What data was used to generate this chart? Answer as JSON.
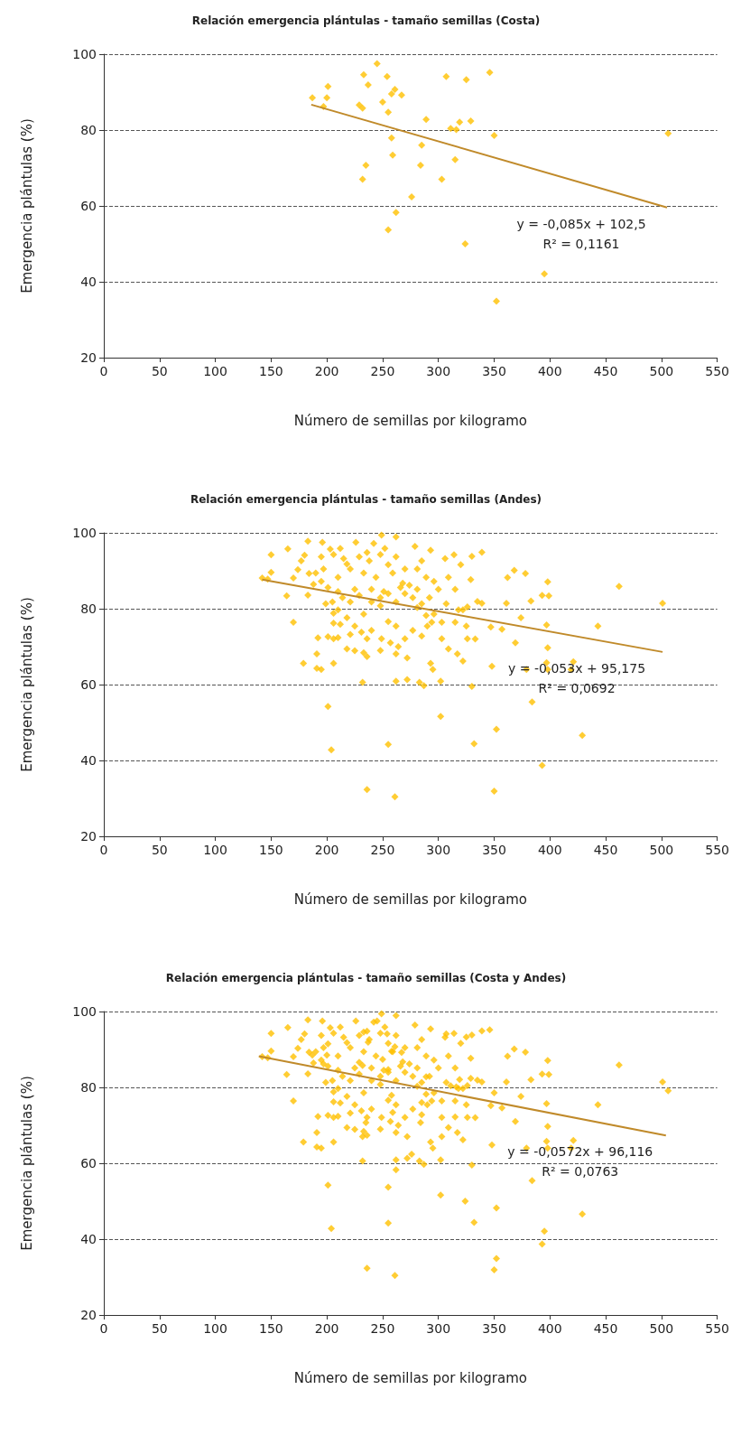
{
  "chart_data": [
    {
      "type": "scatter",
      "title": "Relación emergencia plántulas - tamaño semillas (Costa)",
      "xlabel": "Número de semillas por kilogramo",
      "ylabel": "Emergencia plántulas (%)",
      "xlim": [
        0,
        550
      ],
      "ylim": [
        20,
        100
      ],
      "xticks": [
        0,
        50,
        100,
        150,
        200,
        250,
        300,
        350,
        400,
        450,
        500,
        550
      ],
      "yticks": [
        20,
        40,
        60,
        80,
        100
      ],
      "grid": "y",
      "marker": "diamond",
      "series": [
        {
          "type": "scatter",
          "color": "#ffc000",
          "x": [
            187,
            197,
            200,
            201,
            229,
            232,
            233,
            237,
            232,
            235,
            245,
            250,
            254,
            255,
            258,
            261,
            267,
            258,
            259,
            255,
            262,
            276,
            285,
            284,
            289,
            303,
            307,
            311,
            316,
            315,
            319,
            325,
            329,
            324,
            346,
            350,
            352,
            395,
            506
          ],
          "values": [
            88.5,
            86.2,
            88.5,
            91.5,
            86.6,
            85.8,
            94.6,
            91.9,
            67.0,
            70.7,
            97.5,
            87.4,
            94.1,
            84.7,
            89.5,
            90.7,
            89.2,
            77.9,
            73.4,
            53.7,
            58.3,
            62.4,
            76.0,
            70.7,
            82.8,
            67.0,
            94.1,
            80.4,
            80.1,
            72.2,
            82.1,
            93.3,
            82.4,
            50.0,
            95.2,
            78.6,
            34.9,
            42.1,
            79.1
          ]
        },
        {
          "type": "line",
          "color": "#c08a2a",
          "marker": "none",
          "x": [
            186,
            505
          ],
          "values": [
            86.7,
            59.6
          ]
        }
      ],
      "annotations": [
        "y = -0,085x + 102,5",
        "R² = 0,1161"
      ]
    },
    {
      "type": "scatter",
      "title": "Relación emergencia plántulas - tamaño semillas (Andes)",
      "xlabel": "Número de semillas por kilogramo",
      "ylabel": "Emergencia plántulas (%)",
      "xlim": [
        0,
        550
      ],
      "ylim": [
        20,
        100
      ],
      "xticks": [
        0,
        50,
        100,
        150,
        200,
        250,
        300,
        350,
        400,
        450,
        500,
        550
      ],
      "yticks": [
        20,
        40,
        60,
        80,
        100
      ],
      "grid": "y",
      "marker": "diamond",
      "series": [
        {
          "type": "scatter",
          "color": "#ffc000",
          "x": [
            142,
            147,
            150,
            150,
            164,
            165,
            170,
            170,
            174,
            177,
            179,
            180,
            183,
            183,
            184,
            188,
            191,
            192,
            191,
            195,
            196,
            201,
            204,
            206,
            206,
            210,
            232,
            236,
            255,
            261,
            262,
            272,
            283,
            287,
            302,
            302,
            293,
            295,
            317,
            322,
            330,
            332,
            348,
            350,
            352,
            361,
            362,
            368,
            374,
            378,
            383,
            384,
            393,
            393,
            398,
            399,
            397,
            398,
            398,
            397,
            379,
            419,
            421,
            429,
            443,
            462,
            501,
            339,
            330,
            329,
            314,
            347,
            357,
            335,
            339,
            325,
            326,
            333,
            369,
            195,
            197,
            203,
            206,
            212,
            215,
            218,
            221,
            226,
            229,
            233,
            236,
            238,
            242,
            244,
            248,
            249,
            252,
            255,
            259,
            262,
            262,
            268,
            270,
            274,
            279,
            281,
            285,
            289,
            293,
            296,
            300,
            306,
            309,
            315,
            320,
            322,
            205,
            210,
            218,
            225,
            233,
            240,
            248,
            255,
            262,
            270,
            277,
            281,
            289,
            294,
            303,
            309,
            218,
            225,
            233,
            236,
            248,
            262,
            272,
            201,
            206,
            214,
            221,
            229,
            240,
            248,
            255,
            262,
            270,
            277,
            285,
            292,
            210,
            199,
            225,
            240,
            251,
            266,
            281,
            195,
            201,
            296,
            303,
            315,
            318,
            326,
            307,
            290,
            285,
            206,
            212,
            221,
            231,
            236,
            249,
            257,
            264,
            190,
            210
          ],
          "values": [
            88.1,
            87.8,
            94.2,
            89.6,
            83.4,
            95.8,
            76.4,
            88.1,
            90.3,
            92.6,
            65.6,
            94.1,
            97.8,
            83.6,
            89.3,
            86.4,
            64.3,
            72.3,
            68.1,
            64.0,
            97.5,
            54.2,
            42.8,
            65.6,
            76.2,
            72.4,
            60.6,
            32.3,
            44.2,
            30.4,
            60.9,
            61.3,
            60.6,
            59.7,
            60.9,
            51.6,
            65.6,
            64.0,
            68.1,
            66.2,
            59.5,
            44.4,
            64.8,
            31.9,
            48.2,
            81.4,
            88.2,
            90.1,
            77.6,
            89.3,
            82.0,
            55.4,
            83.5,
            38.7,
            87.1,
            83.4,
            75.7,
            69.7,
            64.0,
            65.8,
            64.0,
            64.0,
            66.0,
            46.6,
            75.4,
            85.9,
            81.4,
            94.9,
            93.8,
            87.7,
            94.2,
            75.2,
            74.6,
            81.9,
            81.4,
            75.4,
            72.1,
            72.0,
            71.0,
            93.7,
            90.5,
            95.7,
            94.3,
            95.9,
            93.2,
            91.8,
            90.5,
            97.5,
            93.7,
            89.4,
            94.8,
            92.6,
            97.2,
            88.3,
            94.3,
            99.4,
            95.9,
            91.6,
            89.4,
            98.9,
            93.7,
            86.7,
            90.5,
            86.2,
            96.4,
            90.5,
            92.6,
            88.3,
            95.4,
            87.2,
            85.1,
            93.2,
            88.3,
            85.1,
            91.6,
            79.7,
            81.8,
            79.7,
            77.6,
            75.4,
            78.6,
            74.3,
            80.8,
            76.6,
            75.4,
            72.1,
            74.3,
            80.3,
            78.2,
            76.4,
            72.1,
            69.4,
            69.4,
            68.9,
            68.4,
            67.4,
            69.0,
            68.1,
            67.0,
            72.6,
            78.8,
            82.9,
            81.8,
            83.5,
            81.8,
            82.9,
            84.0,
            81.8,
            84.0,
            82.9,
            81.3,
            82.9,
            84.5,
            81.3,
            85.1,
            85.1,
            84.5,
            85.6,
            85.1,
            87.2,
            85.6,
            78.6,
            76.4,
            76.4,
            79.7,
            80.5,
            81.3,
            75.4,
            72.8,
            72.1,
            75.9,
            73.2,
            73.8,
            72.1,
            72.1,
            71.0,
            70.0,
            89.4,
            88.3
          ]
        },
        {
          "type": "line",
          "color": "#c08a2a",
          "marker": "none",
          "x": [
            142,
            501
          ],
          "values": [
            87.7,
            68.6
          ]
        }
      ],
      "annotations": [
        "y = -0,053x + 95,175",
        "R² = 0,0692"
      ]
    },
    {
      "type": "scatter",
      "title": "Relación emergencia plántulas - tamaño semillas (Costa y Andes)",
      "xlabel": "Número de semillas por kilogramo",
      "ylabel": "Emergencia plántulas (%)",
      "xlim": [
        0,
        550
      ],
      "ylim": [
        20,
        100
      ],
      "xticks": [
        0,
        50,
        100,
        150,
        200,
        250,
        300,
        350,
        400,
        450,
        500,
        550
      ],
      "yticks": [
        20,
        40,
        60,
        80,
        100
      ],
      "grid": "y",
      "marker": "diamond",
      "series": [
        {
          "type": "scatter",
          "color": "#ffc000",
          "x": [
            187,
            197,
            200,
            201,
            229,
            232,
            233,
            237,
            232,
            235,
            245,
            250,
            254,
            255,
            258,
            261,
            267,
            258,
            259,
            255,
            262,
            276,
            285,
            284,
            289,
            303,
            307,
            311,
            316,
            315,
            319,
            325,
            329,
            324,
            346,
            350,
            352,
            395,
            506,
            142,
            147,
            150,
            150,
            164,
            165,
            170,
            170,
            174,
            177,
            179,
            180,
            183,
            183,
            184,
            188,
            191,
            192,
            191,
            195,
            196,
            201,
            204,
            206,
            206,
            210,
            232,
            236,
            255,
            261,
            262,
            272,
            283,
            287,
            302,
            302,
            293,
            295,
            317,
            322,
            330,
            332,
            348,
            350,
            352,
            361,
            362,
            368,
            374,
            378,
            383,
            384,
            393,
            393,
            398,
            399,
            397,
            398,
            398,
            397,
            379,
            419,
            421,
            429,
            443,
            462,
            501,
            339,
            330,
            329,
            314,
            347,
            357,
            335,
            339,
            325,
            326,
            333,
            369,
            195,
            197,
            203,
            206,
            212,
            215,
            218,
            221,
            226,
            229,
            233,
            236,
            238,
            242,
            244,
            248,
            249,
            252,
            255,
            259,
            262,
            262,
            268,
            270,
            274,
            279,
            281,
            285,
            289,
            293,
            296,
            300,
            306,
            309,
            315,
            320,
            322,
            205,
            210,
            218,
            225,
            233,
            240,
            248,
            255,
            262,
            270,
            277,
            281,
            289,
            294,
            303,
            309,
            218,
            225,
            233,
            236,
            248,
            262,
            272,
            201,
            206,
            214,
            221,
            229,
            240,
            248,
            255,
            262,
            270,
            277,
            285,
            292,
            210,
            199,
            225,
            240,
            251,
            266,
            281,
            195,
            201,
            296,
            303,
            315,
            318,
            326,
            307,
            290,
            285,
            206,
            212,
            221,
            231,
            236,
            249,
            257,
            264,
            190,
            210
          ],
          "values": [
            88.5,
            86.2,
            88.5,
            91.5,
            86.6,
            85.8,
            94.6,
            91.9,
            67.0,
            70.7,
            97.5,
            87.4,
            94.1,
            84.7,
            89.5,
            90.7,
            89.2,
            77.9,
            73.4,
            53.7,
            58.3,
            62.4,
            76.0,
            70.7,
            82.8,
            67.0,
            94.1,
            80.4,
            80.1,
            72.2,
            82.1,
            93.3,
            82.4,
            50.0,
            95.2,
            78.6,
            34.9,
            42.1,
            79.1,
            88.1,
            87.8,
            94.2,
            89.6,
            83.4,
            95.8,
            76.4,
            88.1,
            90.3,
            92.6,
            65.6,
            94.1,
            97.8,
            83.6,
            89.3,
            86.4,
            64.3,
            72.3,
            68.1,
            64.0,
            97.5,
            54.2,
            42.8,
            65.6,
            76.2,
            72.4,
            60.6,
            32.3,
            44.2,
            30.4,
            60.9,
            61.3,
            60.6,
            59.7,
            60.9,
            51.6,
            65.6,
            64.0,
            68.1,
            66.2,
            59.5,
            44.4,
            64.8,
            31.9,
            48.2,
            81.4,
            88.2,
            90.1,
            77.6,
            89.3,
            82.0,
            55.4,
            83.5,
            38.7,
            87.1,
            83.4,
            75.7,
            69.7,
            64.0,
            65.8,
            64.0,
            64.0,
            66.0,
            46.6,
            75.4,
            85.9,
            81.4,
            94.9,
            93.8,
            87.7,
            94.2,
            75.2,
            74.6,
            81.9,
            81.4,
            75.4,
            72.1,
            72.0,
            71.0,
            93.7,
            90.5,
            95.7,
            94.3,
            95.9,
            93.2,
            91.8,
            90.5,
            97.5,
            93.7,
            89.4,
            94.8,
            92.6,
            97.2,
            88.3,
            94.3,
            99.4,
            95.9,
            91.6,
            89.4,
            98.9,
            93.7,
            86.7,
            90.5,
            86.2,
            96.4,
            90.5,
            92.6,
            88.3,
            95.4,
            87.2,
            85.1,
            93.2,
            88.3,
            85.1,
            91.6,
            79.7,
            81.8,
            79.7,
            77.6,
            75.4,
            78.6,
            74.3,
            80.8,
            76.6,
            75.4,
            72.1,
            74.3,
            80.3,
            78.2,
            76.4,
            72.1,
            69.4,
            69.4,
            68.9,
            68.4,
            67.4,
            69.0,
            68.1,
            67.0,
            72.6,
            78.8,
            82.9,
            81.8,
            83.5,
            81.8,
            82.9,
            84.0,
            81.8,
            84.0,
            82.9,
            81.3,
            82.9,
            84.5,
            81.3,
            85.1,
            85.1,
            84.5,
            85.6,
            85.1,
            87.2,
            85.6,
            78.6,
            76.4,
            76.4,
            79.7,
            80.5,
            81.3,
            75.4,
            72.8,
            72.1,
            75.9,
            73.2,
            73.8,
            72.1,
            72.1,
            71.0,
            70.0,
            89.4,
            88.3
          ]
        },
        {
          "type": "line",
          "color": "#c08a2a",
          "marker": "none",
          "x": [
            139,
            504
          ],
          "values": [
            88.2,
            67.3
          ]
        }
      ],
      "annotations": [
        "y = -0,0572x + 96,116",
        "R² = 0,0763"
      ]
    }
  ]
}
